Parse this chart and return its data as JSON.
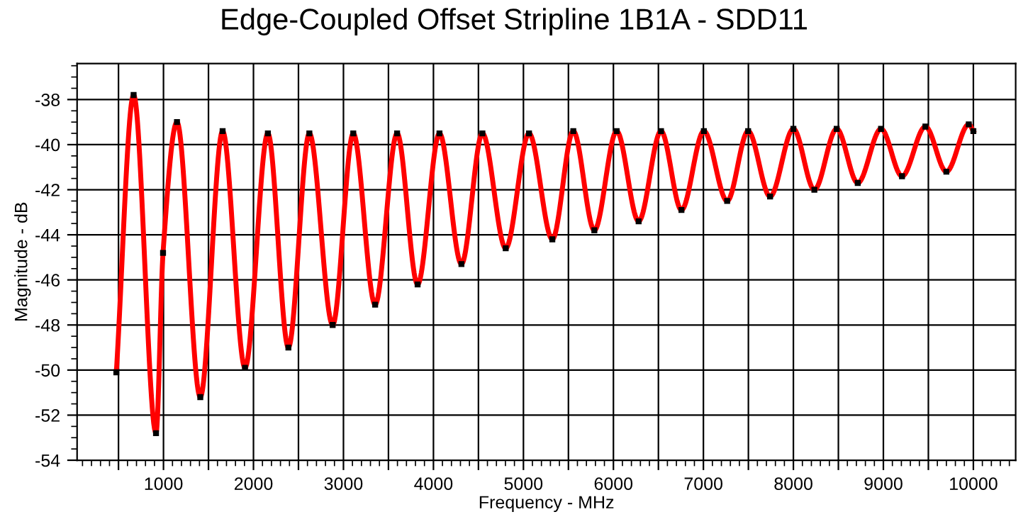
{
  "chart_data": {
    "type": "line",
    "title": "Edge-Coupled Offset Stripline 1B1A - SDD11",
    "xlabel": "Frequency - MHz",
    "ylabel": "Magnitude - dB",
    "xlim": [
      40,
      10470
    ],
    "ylim": [
      -54,
      -36.4
    ],
    "xticks": [
      {
        "value": 500,
        "label": null
      },
      1000,
      {
        "value": 1500,
        "label": null
      },
      2000,
      {
        "value": 2500,
        "label": null
      },
      3000,
      {
        "value": 3500,
        "label": null
      },
      4000,
      {
        "value": 4500,
        "label": null
      },
      5000,
      {
        "value": 5500,
        "label": null
      },
      6000,
      {
        "value": 6500,
        "label": null
      },
      7000,
      {
        "value": 7500,
        "label": null
      },
      8000,
      {
        "value": 8500,
        "label": null
      },
      9000,
      {
        "value": 9500,
        "label": null
      },
      10000
    ],
    "yticks": [
      -54,
      -52,
      -50,
      -48,
      -46,
      -44,
      -42,
      -40,
      -38
    ],
    "grid": true,
    "legend": false,
    "marker": "square",
    "line_style": "solid",
    "series": [
      {
        "color": "#ff0000",
        "x": [
          476,
          668,
          917,
          995,
          1150,
          1409,
          1657,
          1906,
          2160,
          2388,
          2621,
          2880,
          3109,
          3352,
          3596,
          3824,
          4067,
          4311,
          4544,
          4803,
          5062,
          5321,
          5554,
          5788,
          6036,
          6280,
          6529,
          6756,
          7005,
          7264,
          7497,
          7741,
          8000,
          8233,
          8481,
          8715,
          8974,
          9207,
          9467,
          9700,
          9949,
          10000
        ],
        "values": [
          -50.1,
          -37.8,
          -52.8,
          -44.8,
          -39.0,
          -51.2,
          -39.4,
          -49.9,
          -39.5,
          -49.0,
          -39.5,
          -48.0,
          -39.5,
          -47.1,
          -39.5,
          -46.2,
          -39.5,
          -45.3,
          -39.5,
          -44.6,
          -39.5,
          -44.2,
          -39.4,
          -43.8,
          -39.4,
          -43.4,
          -39.4,
          -42.9,
          -39.4,
          -42.5,
          -39.4,
          -42.3,
          -39.3,
          -42.0,
          -39.3,
          -41.7,
          -39.3,
          -41.4,
          -39.2,
          -41.2,
          -39.1,
          -39.4
        ]
      }
    ]
  }
}
